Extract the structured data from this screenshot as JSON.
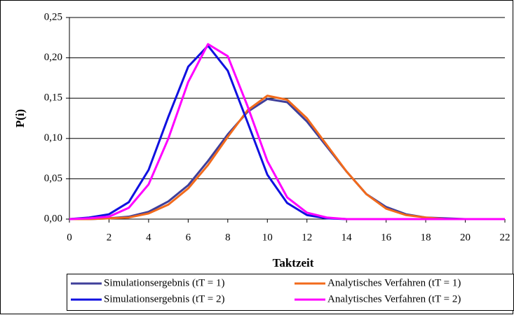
{
  "chart_data": {
    "type": "line",
    "x_label": "Taktzeit",
    "y_label": "P(i)",
    "x": [
      0,
      1,
      2,
      3,
      4,
      5,
      6,
      7,
      8,
      9,
      10,
      11,
      12,
      13,
      14,
      15,
      16,
      17,
      18,
      19,
      20,
      21,
      22
    ],
    "xlim": [
      0,
      22
    ],
    "xticks": [
      0,
      2,
      4,
      6,
      8,
      10,
      12,
      14,
      16,
      18,
      20,
      22
    ],
    "ylim": [
      0,
      0.25
    ],
    "yticks": [
      {
        "value": 0,
        "label": "0,00"
      },
      {
        "value": 0.05,
        "label": "0,05"
      },
      {
        "value": 0.1,
        "label": "0,10"
      },
      {
        "value": 0.15,
        "label": "0,15"
      },
      {
        "value": 0.2,
        "label": "0,20"
      },
      {
        "value": 0.25,
        "label": "0,25"
      }
    ],
    "grid": true,
    "series": [
      {
        "name": "Simulationsergebnis (tT = 1)",
        "color": "#3f3f9a",
        "values": [
          0,
          0,
          0.001,
          0.003,
          0.009,
          0.022,
          0.042,
          0.072,
          0.105,
          0.133,
          0.149,
          0.145,
          0.121,
          0.09,
          0.059,
          0.031,
          0.015,
          0.006,
          0.002,
          0.001,
          0,
          0,
          0
        ]
      },
      {
        "name": "Analytisches Verfahren (tT = 1)",
        "color": "#f26a1b",
        "values": [
          0,
          0,
          0.001,
          0.002,
          0.007,
          0.018,
          0.038,
          0.067,
          0.102,
          0.135,
          0.153,
          0.148,
          0.125,
          0.092,
          0.059,
          0.031,
          0.013,
          0.005,
          0.002,
          0,
          0,
          0,
          0
        ]
      },
      {
        "name": "Simulationsergebnis (tT = 2)",
        "color": "#1010e0",
        "values": [
          0,
          0.002,
          0.006,
          0.021,
          0.061,
          0.127,
          0.189,
          0.215,
          0.184,
          0.12,
          0.055,
          0.02,
          0.005,
          0.001,
          0,
          0,
          0,
          0,
          0,
          0,
          0,
          0,
          0
        ]
      },
      {
        "name": "Analytisches Verfahren (tT = 2)",
        "color": "#ff00ff",
        "values": [
          0,
          0.001,
          0.003,
          0.014,
          0.043,
          0.1,
          0.17,
          0.217,
          0.202,
          0.14,
          0.072,
          0.027,
          0.008,
          0.002,
          0,
          0,
          0,
          0,
          0,
          0,
          0,
          0,
          0
        ]
      }
    ]
  }
}
